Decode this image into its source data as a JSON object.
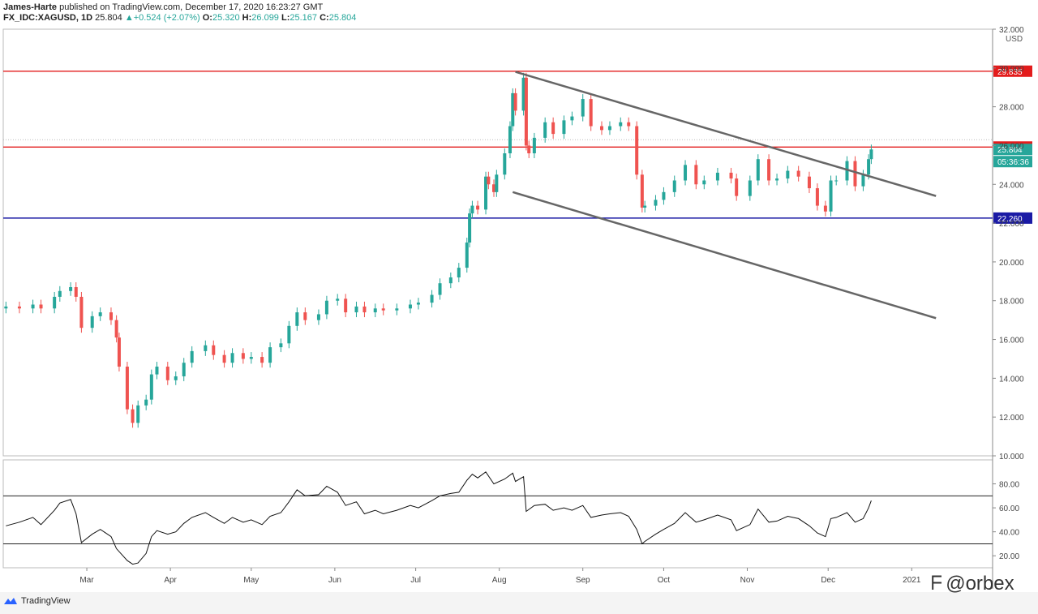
{
  "header": {
    "author": "James-Harte",
    "published": "published on TradingView.com, December 17, 2020 16:23:27 GMT"
  },
  "symbol": {
    "name": "FX_IDC:XAGUSD, 1D",
    "last": "25.804",
    "change": "+0.524 (+2.07%)",
    "o_label": "O:",
    "o": "25.320",
    "h_label": "H:",
    "h": "26.099",
    "l_label": "L:",
    "l": "25.167",
    "c_label": "C:",
    "c": "25.804"
  },
  "currency": "USD",
  "colors": {
    "up": "#26a69a",
    "down": "#ef5350",
    "red_line": "#e31c1c",
    "blue_line": "#1a1aa5",
    "channel": "#666666"
  },
  "chart_data": [
    {
      "type": "candlestick",
      "title": "",
      "ylim": [
        10,
        32
      ],
      "y_ticks": [
        "10.000",
        "12.000",
        "14.000",
        "16.000",
        "18.000",
        "20.000",
        "22.000",
        "24.000",
        "26.000",
        "28.000",
        "30.000",
        "32.000"
      ],
      "x_ticks": [
        "Mar",
        "Apr",
        "May",
        "Jun",
        "Jul",
        "Aug",
        "Sep",
        "Oct",
        "Nov",
        "Dec",
        "2021"
      ],
      "x_range": [
        "2020-01-30",
        "2021-01-31"
      ],
      "series_close": [
        [
          "2020-01-31",
          17.7
        ],
        [
          "2020-02-05",
          17.6
        ],
        [
          "2020-02-10",
          17.8
        ],
        [
          "2020-02-13",
          17.6
        ],
        [
          "2020-02-18",
          18.2
        ],
        [
          "2020-02-20",
          18.5
        ],
        [
          "2020-02-24",
          18.7
        ],
        [
          "2020-02-26",
          18.2
        ],
        [
          "2020-02-28",
          16.6
        ],
        [
          "2020-03-03",
          17.2
        ],
        [
          "2020-03-06",
          17.4
        ],
        [
          "2020-03-10",
          17.0
        ],
        [
          "2020-03-12",
          16.1
        ],
        [
          "2020-03-13",
          14.6
        ],
        [
          "2020-03-16",
          12.4
        ],
        [
          "2020-03-18",
          11.7
        ],
        [
          "2020-03-20",
          12.6
        ],
        [
          "2020-03-23",
          12.9
        ],
        [
          "2020-03-25",
          14.2
        ],
        [
          "2020-03-27",
          14.6
        ],
        [
          "2020-03-31",
          13.9
        ],
        [
          "2020-04-03",
          14.1
        ],
        [
          "2020-04-06",
          14.8
        ],
        [
          "2020-04-09",
          15.4
        ],
        [
          "2020-04-14",
          15.7
        ],
        [
          "2020-04-17",
          15.2
        ],
        [
          "2020-04-21",
          14.8
        ],
        [
          "2020-04-24",
          15.3
        ],
        [
          "2020-04-28",
          15.0
        ],
        [
          "2020-05-01",
          15.1
        ],
        [
          "2020-05-05",
          14.8
        ],
        [
          "2020-05-08",
          15.6
        ],
        [
          "2020-05-12",
          15.8
        ],
        [
          "2020-05-15",
          16.7
        ],
        [
          "2020-05-18",
          17.4
        ],
        [
          "2020-05-21",
          17.0
        ],
        [
          "2020-05-26",
          17.3
        ],
        [
          "2020-05-29",
          18.0
        ],
        [
          "2020-06-02",
          18.1
        ],
        [
          "2020-06-05",
          17.4
        ],
        [
          "2020-06-09",
          17.7
        ],
        [
          "2020-06-12",
          17.4
        ],
        [
          "2020-06-16",
          17.6
        ],
        [
          "2020-06-19",
          17.5
        ],
        [
          "2020-06-24",
          17.6
        ],
        [
          "2020-06-29",
          17.8
        ],
        [
          "2020-07-02",
          17.9
        ],
        [
          "2020-07-07",
          18.3
        ],
        [
          "2020-07-10",
          18.9
        ],
        [
          "2020-07-14",
          19.2
        ],
        [
          "2020-07-17",
          19.7
        ],
        [
          "2020-07-20",
          21.0
        ],
        [
          "2020-07-21",
          22.5
        ],
        [
          "2020-07-22",
          22.9
        ],
        [
          "2020-07-24",
          22.7
        ],
        [
          "2020-07-27",
          24.4
        ],
        [
          "2020-07-28",
          24.0
        ],
        [
          "2020-07-30",
          23.6
        ],
        [
          "2020-07-31",
          24.5
        ],
        [
          "2020-08-03",
          25.6
        ],
        [
          "2020-08-05",
          27.0
        ],
        [
          "2020-08-06",
          28.7
        ],
        [
          "2020-08-07",
          27.8
        ],
        [
          "2020-08-10",
          29.5
        ],
        [
          "2020-08-11",
          26.0
        ],
        [
          "2020-08-12",
          25.6
        ],
        [
          "2020-08-14",
          26.4
        ],
        [
          "2020-08-18",
          27.2
        ],
        [
          "2020-08-21",
          26.6
        ],
        [
          "2020-08-25",
          27.3
        ],
        [
          "2020-08-28",
          27.5
        ],
        [
          "2020-09-01",
          28.4
        ],
        [
          "2020-09-04",
          27.0
        ],
        [
          "2020-09-08",
          26.8
        ],
        [
          "2020-09-11",
          27.0
        ],
        [
          "2020-09-15",
          27.2
        ],
        [
          "2020-09-18",
          27.0
        ],
        [
          "2020-09-21",
          24.5
        ],
        [
          "2020-09-23",
          22.8
        ],
        [
          "2020-09-24",
          22.9
        ],
        [
          "2020-09-28",
          23.2
        ],
        [
          "2020-10-01",
          23.6
        ],
        [
          "2020-10-05",
          24.2
        ],
        [
          "2020-10-09",
          25.0
        ],
        [
          "2020-10-13",
          24.0
        ],
        [
          "2020-10-16",
          24.2
        ],
        [
          "2020-10-21",
          24.6
        ],
        [
          "2020-10-26",
          24.3
        ],
        [
          "2020-10-28",
          23.4
        ],
        [
          "2020-11-02",
          24.2
        ],
        [
          "2020-11-05",
          25.3
        ],
        [
          "2020-11-09",
          24.2
        ],
        [
          "2020-11-12",
          24.3
        ],
        [
          "2020-11-16",
          24.7
        ],
        [
          "2020-11-20",
          24.4
        ],
        [
          "2020-11-24",
          23.8
        ],
        [
          "2020-11-27",
          22.9
        ],
        [
          "2020-11-30",
          22.6
        ],
        [
          "2020-12-02",
          24.2
        ],
        [
          "2020-12-04",
          24.2
        ],
        [
          "2020-12-08",
          25.2
        ],
        [
          "2020-12-11",
          23.9
        ],
        [
          "2020-12-14",
          24.5
        ],
        [
          "2020-12-16",
          25.3
        ],
        [
          "2020-12-17",
          25.8
        ]
      ],
      "horizontal_lines": [
        {
          "label": "29.835",
          "value": 29.835,
          "color": "#e31c1c"
        },
        {
          "label": "25.924",
          "value": 25.924,
          "color": "#e31c1c"
        },
        {
          "label": "22.260",
          "value": 22.26,
          "color": "#1a1aa5"
        }
      ],
      "price_labels": [
        {
          "label": "25.804",
          "color": "#26a69a"
        },
        {
          "label": "05:36:36",
          "color": "#26a69a"
        }
      ],
      "channel_lines": [
        {
          "from": [
            "2020-08-07",
            29.8
          ],
          "to": [
            "2021-01-10",
            23.4
          ]
        },
        {
          "from": [
            "2020-08-06",
            23.6
          ],
          "to": [
            "2021-01-10",
            17.1
          ]
        }
      ]
    },
    {
      "type": "line",
      "title": "",
      "ylim": [
        10,
        100
      ],
      "y_ticks": [
        "20.00",
        "40.00",
        "60.00",
        "80.00"
      ],
      "levels": [
        70,
        30
      ],
      "series_values": [
        [
          "2020-01-31",
          45
        ],
        [
          "2020-02-05",
          48
        ],
        [
          "2020-02-10",
          52
        ],
        [
          "2020-02-13",
          46
        ],
        [
          "2020-02-18",
          58
        ],
        [
          "2020-02-20",
          64
        ],
        [
          "2020-02-24",
          67
        ],
        [
          "2020-02-26",
          55
        ],
        [
          "2020-02-28",
          31
        ],
        [
          "2020-03-03",
          38
        ],
        [
          "2020-03-06",
          42
        ],
        [
          "2020-03-10",
          36
        ],
        [
          "2020-03-12",
          26
        ],
        [
          "2020-03-16",
          16
        ],
        [
          "2020-03-18",
          13
        ],
        [
          "2020-03-20",
          14
        ],
        [
          "2020-03-23",
          22
        ],
        [
          "2020-03-25",
          36
        ],
        [
          "2020-03-27",
          41
        ],
        [
          "2020-03-31",
          38
        ],
        [
          "2020-04-03",
          40
        ],
        [
          "2020-04-06",
          47
        ],
        [
          "2020-04-09",
          52
        ],
        [
          "2020-04-14",
          56
        ],
        [
          "2020-04-17",
          52
        ],
        [
          "2020-04-21",
          47
        ],
        [
          "2020-04-24",
          52
        ],
        [
          "2020-04-28",
          48
        ],
        [
          "2020-05-01",
          50
        ],
        [
          "2020-05-05",
          46
        ],
        [
          "2020-05-08",
          53
        ],
        [
          "2020-05-12",
          56
        ],
        [
          "2020-05-15",
          65
        ],
        [
          "2020-05-18",
          75
        ],
        [
          "2020-05-21",
          70
        ],
        [
          "2020-05-26",
          71
        ],
        [
          "2020-05-29",
          78
        ],
        [
          "2020-06-02",
          73
        ],
        [
          "2020-06-05",
          62
        ],
        [
          "2020-06-09",
          65
        ],
        [
          "2020-06-12",
          55
        ],
        [
          "2020-06-16",
          58
        ],
        [
          "2020-06-19",
          55
        ],
        [
          "2020-06-24",
          58
        ],
        [
          "2020-06-29",
          62
        ],
        [
          "2020-07-02",
          60
        ],
        [
          "2020-07-07",
          66
        ],
        [
          "2020-07-10",
          70
        ],
        [
          "2020-07-14",
          72
        ],
        [
          "2020-07-17",
          73
        ],
        [
          "2020-07-20",
          83
        ],
        [
          "2020-07-22",
          88
        ],
        [
          "2020-07-24",
          85
        ],
        [
          "2020-07-27",
          90
        ],
        [
          "2020-07-30",
          80
        ],
        [
          "2020-08-03",
          84
        ],
        [
          "2020-08-06",
          89
        ],
        [
          "2020-08-07",
          82
        ],
        [
          "2020-08-10",
          86
        ],
        [
          "2020-08-11",
          57
        ],
        [
          "2020-08-14",
          62
        ],
        [
          "2020-08-18",
          63
        ],
        [
          "2020-08-21",
          58
        ],
        [
          "2020-08-25",
          60
        ],
        [
          "2020-08-28",
          58
        ],
        [
          "2020-09-01",
          62
        ],
        [
          "2020-09-04",
          52
        ],
        [
          "2020-09-08",
          54
        ],
        [
          "2020-09-11",
          55
        ],
        [
          "2020-09-15",
          56
        ],
        [
          "2020-09-18",
          53
        ],
        [
          "2020-09-21",
          42
        ],
        [
          "2020-09-23",
          30
        ],
        [
          "2020-09-24",
          32
        ],
        [
          "2020-09-28",
          38
        ],
        [
          "2020-10-01",
          42
        ],
        [
          "2020-10-05",
          47
        ],
        [
          "2020-10-09",
          56
        ],
        [
          "2020-10-13",
          48
        ],
        [
          "2020-10-16",
          50
        ],
        [
          "2020-10-21",
          54
        ],
        [
          "2020-10-26",
          50
        ],
        [
          "2020-10-28",
          41
        ],
        [
          "2020-11-02",
          46
        ],
        [
          "2020-11-05",
          59
        ],
        [
          "2020-11-09",
          48
        ],
        [
          "2020-11-12",
          49
        ],
        [
          "2020-11-16",
          53
        ],
        [
          "2020-11-20",
          51
        ],
        [
          "2020-11-24",
          45
        ],
        [
          "2020-11-27",
          39
        ],
        [
          "2020-11-30",
          36
        ],
        [
          "2020-12-02",
          51
        ],
        [
          "2020-12-04",
          52
        ],
        [
          "2020-12-08",
          56
        ],
        [
          "2020-12-11",
          48
        ],
        [
          "2020-12-14",
          51
        ],
        [
          "2020-12-16",
          60
        ],
        [
          "2020-12-17",
          66
        ]
      ]
    }
  ],
  "footer": {
    "brand": "TradingView",
    "watermark": "@orbex"
  }
}
